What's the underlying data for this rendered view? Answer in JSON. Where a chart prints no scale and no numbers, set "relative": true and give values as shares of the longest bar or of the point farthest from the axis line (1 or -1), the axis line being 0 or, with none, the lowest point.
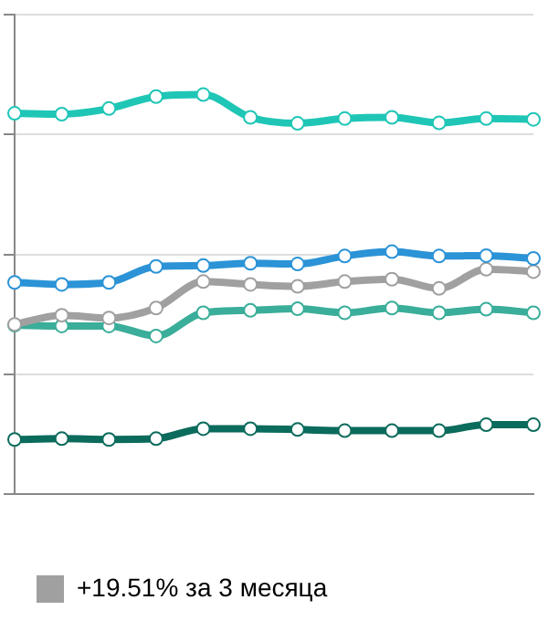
{
  "chart_data": {
    "type": "line",
    "relative": true,
    "categories": [
      null,
      null,
      null,
      null,
      null,
      null,
      null,
      null,
      null,
      null,
      null,
      null
    ],
    "series": [
      {
        "color": "#1fc6b6",
        "values": [
          0.953,
          0.951,
          0.965,
          0.995,
          1,
          0.943,
          0.928,
          0.94,
          0.943,
          0.929,
          0.94,
          0.938
        ]
      },
      {
        "color": "#2b93d6",
        "values": [
          0.53,
          0.525,
          0.53,
          0.57,
          0.572,
          0.578,
          0.576,
          0.596,
          0.607,
          0.596,
          0.597,
          0.59
        ]
      },
      {
        "name": "+19.51% за 3 месяца",
        "color": "#a0a0a0",
        "values": [
          0.425,
          0.448,
          0.441,
          0.466,
          0.532,
          0.525,
          0.52,
          0.532,
          0.538,
          0.515,
          0.563,
          0.557
        ]
      },
      {
        "color": "#3aae9a",
        "values": [
          0.423,
          0.421,
          0.421,
          0.396,
          0.454,
          0.46,
          0.464,
          0.454,
          0.466,
          0.454,
          0.463,
          0.454
        ]
      },
      {
        "color": "#0b6b5c",
        "values": [
          0.137,
          0.139,
          0.137,
          0.139,
          0.164,
          0.164,
          0.162,
          0.159,
          0.159,
          0.159,
          0.174,
          0.174
        ]
      }
    ],
    "grid": "y",
    "legend": "bottom",
    "marker": "circle",
    "line_style": "solid"
  }
}
